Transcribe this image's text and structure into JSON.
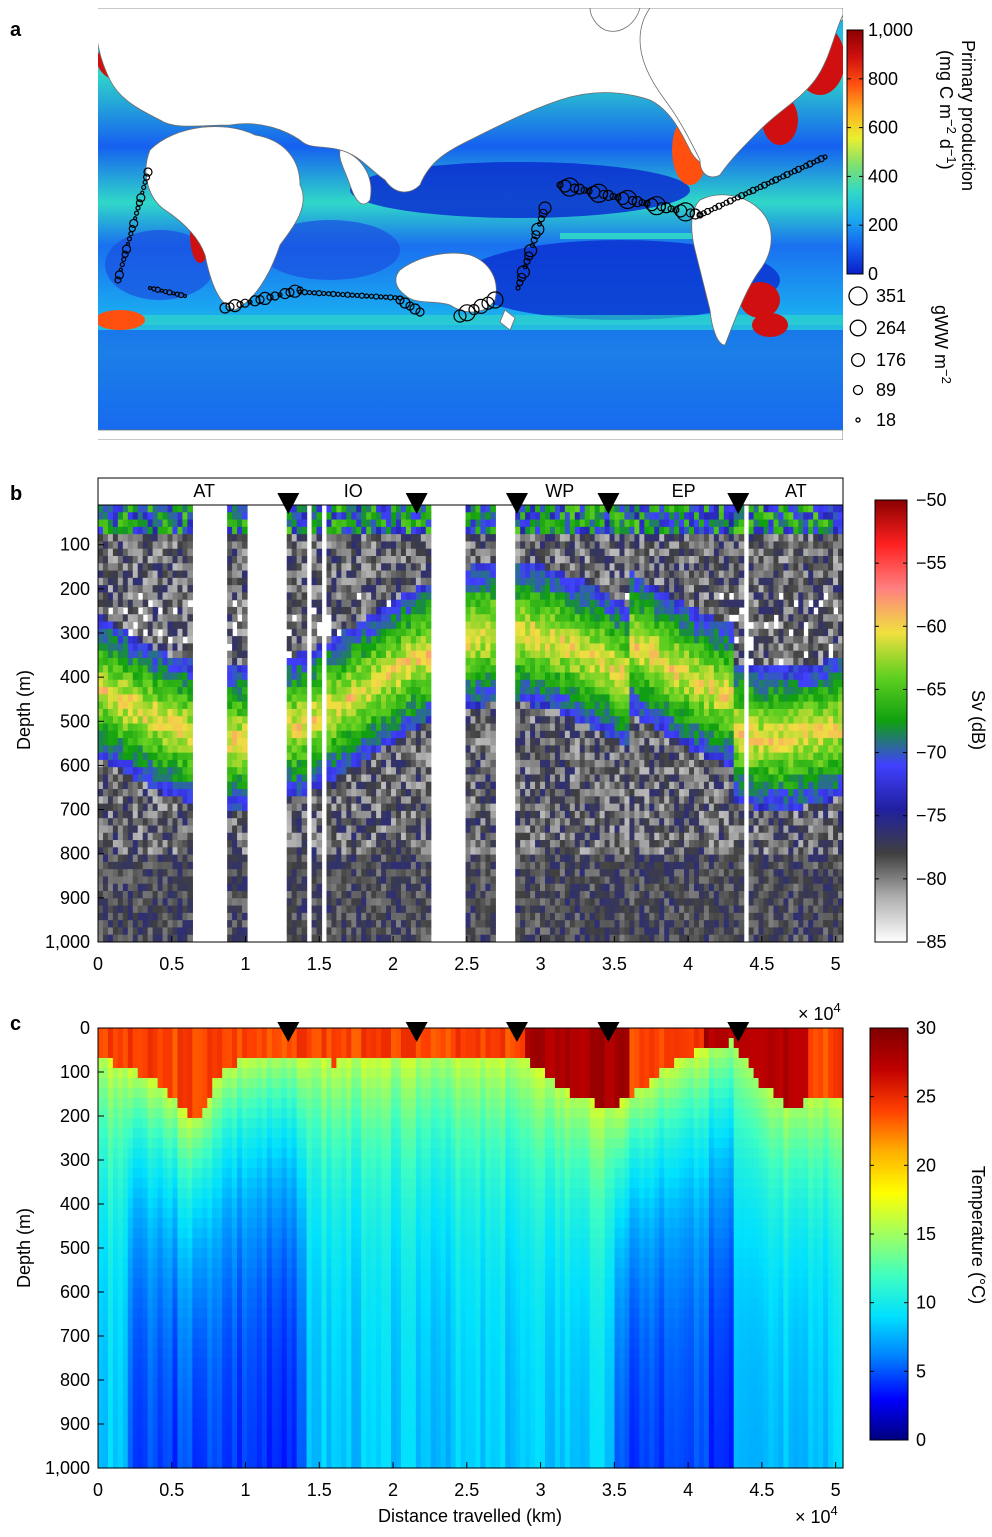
{
  "panels": [
    {
      "letter": "a"
    },
    {
      "letter": "b"
    },
    {
      "letter": "c"
    }
  ],
  "chart_data": [
    {
      "panel": "a",
      "type": "heatmap",
      "colorbar": {
        "label_line1": "Primary production",
        "label_line2": "(mg C m",
        "exp1": "−2",
        "mid": " d",
        "exp2": "−1",
        "close": ")",
        "ticks": [
          "1,000",
          "800",
          "600",
          "400",
          "200",
          "0"
        ],
        "tick_values": [
          1000,
          800,
          600,
          400,
          200,
          0
        ],
        "range": [
          0,
          1000
        ],
        "colors": [
          "#0a1ec8",
          "#1560f0",
          "#1aa8f0",
          "#30d8c8",
          "#7ee070",
          "#e8f030",
          "#ffb020",
          "#ff5010",
          "#d01010",
          "#8b0000"
        ]
      },
      "size_legend": {
        "label": "gWW m",
        "exp": "−2",
        "values": [
          351,
          264,
          176,
          89,
          18
        ],
        "labels": [
          "351",
          "264",
          "176",
          "89",
          "18"
        ]
      },
      "colors": {
        "land": "#ffffff",
        "coast": "#6e6e6e",
        "marker": "#000000"
      }
    },
    {
      "panel": "b",
      "type": "heatmap",
      "region_labels": [
        "AT",
        "IO",
        "WP",
        "EP",
        "AT"
      ],
      "region_centers_x": [
        0.72,
        1.73,
        3.13,
        3.97,
        4.73
      ],
      "markers_x": [
        1.29,
        2.16,
        2.84,
        3.46,
        4.34
      ],
      "x_ticks": [
        "0",
        "0.5",
        "1",
        "1.5",
        "2",
        "2.5",
        "3",
        "3.5",
        "4",
        "4.5",
        "5"
      ],
      "x_tick_values": [
        0,
        0.5,
        1,
        1.5,
        2,
        2.5,
        3,
        3.5,
        4,
        4.5,
        5
      ],
      "xlim": [
        0,
        5.05
      ],
      "y_label": "Depth (m)",
      "y_ticks": [
        "100",
        "200",
        "300",
        "400",
        "500",
        "600",
        "700",
        "800",
        "900",
        "1,000"
      ],
      "y_tick_values": [
        100,
        200,
        300,
        400,
        500,
        600,
        700,
        800,
        900,
        1000
      ],
      "ylim": [
        10,
        1000
      ],
      "gaps_x": [
        [
          0.65,
          0.87
        ],
        [
          1.02,
          1.28
        ],
        [
          1.4,
          1.45
        ],
        [
          1.5,
          1.55
        ],
        [
          2.26,
          2.5
        ],
        [
          2.68,
          2.82
        ],
        [
          4.37,
          4.41
        ]
      ],
      "colorbar": {
        "label": "Sv (dB)",
        "ticks": [
          "−50",
          "−55",
          "−60",
          "−65",
          "−70",
          "−75",
          "−80",
          "−85"
        ],
        "tick_values": [
          -50,
          -55,
          -60,
          -65,
          -70,
          -75,
          -80,
          -85
        ],
        "range": [
          -85,
          -50
        ],
        "colors": [
          "#ffffff",
          "#b0b0b0",
          "#404040",
          "#2020a0",
          "#4040ff",
          "#10a010",
          "#60d020",
          "#f0e040",
          "#ff8080",
          "#ff2020",
          "#8b0000"
        ]
      }
    },
    {
      "panel": "c",
      "type": "heatmap",
      "markers_x": [
        1.29,
        2.16,
        2.84,
        3.46,
        4.34
      ],
      "x_ticks": [
        "0",
        "0.5",
        "1",
        "1.5",
        "2",
        "2.5",
        "3",
        "3.5",
        "4",
        "4.5",
        "5"
      ],
      "x_tick_values": [
        0,
        0.5,
        1,
        1.5,
        2,
        2.5,
        3,
        3.5,
        4,
        4.5,
        5
      ],
      "xlim": [
        0,
        5.05
      ],
      "x_multiplier": "× 10",
      "x_multiplier_exp": "4",
      "x_label": "Distance travelled (km)",
      "y_label": "Depth (m)",
      "y_ticks": [
        "0",
        "100",
        "200",
        "300",
        "400",
        "500",
        "600",
        "700",
        "800",
        "900",
        "1,000"
      ],
      "y_tick_values": [
        0,
        100,
        200,
        300,
        400,
        500,
        600,
        700,
        800,
        900,
        1000
      ],
      "ylim": [
        0,
        1000
      ],
      "mixed_layer_depth": {
        "x": [
          0,
          0.2,
          0.4,
          0.55,
          0.68,
          0.8,
          1.0,
          1.35,
          1.6,
          2.0,
          2.5,
          2.9,
          3.15,
          3.35,
          3.5,
          3.7,
          4.0,
          4.3,
          4.5,
          4.7,
          5.0
        ],
        "depth": [
          70,
          90,
          120,
          180,
          220,
          110,
          70,
          60,
          80,
          60,
          60,
          70,
          140,
          170,
          180,
          130,
          60,
          30,
          130,
          180,
          150
        ]
      },
      "colorbar": {
        "label": "Temperature (°C)",
        "ticks": [
          "30",
          "25",
          "20",
          "15",
          "10",
          "5",
          "0"
        ],
        "tick_values": [
          30,
          25,
          20,
          15,
          10,
          5,
          0
        ],
        "range": [
          0,
          30
        ],
        "colors": [
          "#00007f",
          "#0000ff",
          "#007fff",
          "#00e0ff",
          "#40ffc0",
          "#a0ff60",
          "#ffff00",
          "#ffb000",
          "#ff4000",
          "#c00000",
          "#7f0000"
        ]
      }
    }
  ]
}
